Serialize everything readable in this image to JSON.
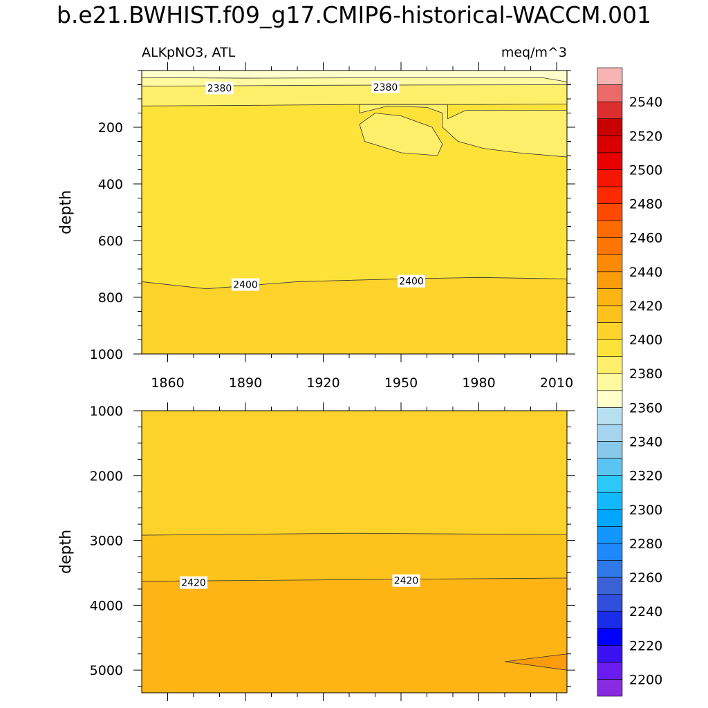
{
  "title": "b.e21.BWHIST.f09_g17.CMIP6-historical-WACCM.001",
  "chart_data": [
    {
      "type": "contour",
      "panel": "upper",
      "left_label": "ALKpNO3, ATL",
      "right_label": "meq/m^3",
      "ylabel": "depth",
      "y_reversed": true,
      "xlim": [
        1850,
        2014
      ],
      "ylim": [
        0,
        1000
      ],
      "x_ticks": [
        1860,
        1890,
        1920,
        1950,
        1980,
        2010
      ],
      "y_ticks": [
        200,
        400,
        600,
        800,
        1000
      ],
      "contour_labels": [
        {
          "text": "2380",
          "x": 1880,
          "y": 62
        },
        {
          "text": "2380",
          "x": 1944,
          "y": 58
        },
        {
          "text": "2400",
          "x": 1890,
          "y": 755
        },
        {
          "text": "2400",
          "x": 1954,
          "y": 743
        }
      ],
      "bands": [
        {
          "range": "2360-2370",
          "top": [
            [
              1850,
              0
            ],
            [
              2014,
              0
            ]
          ],
          "bottom": [
            [
              1850,
              25
            ],
            [
              1890,
              27
            ],
            [
              1930,
              26
            ],
            [
              1980,
              26
            ],
            [
              2005,
              26
            ],
            [
              2014,
              40
            ]
          ]
        },
        {
          "range": "2370-2380",
          "top": [
            [
              1850,
              25
            ],
            [
              1890,
              27
            ],
            [
              1930,
              26
            ],
            [
              1980,
              26
            ],
            [
              2005,
              26
            ],
            [
              2014,
              40
            ]
          ],
          "bottom": [
            [
              1850,
              55
            ],
            [
              1880,
              54
            ],
            [
              1920,
              52
            ],
            [
              1960,
              51
            ],
            [
              2014,
              50
            ]
          ]
        },
        {
          "range": "2380-2390",
          "top": [
            [
              1850,
              55
            ],
            [
              1880,
              54
            ],
            [
              1920,
              52
            ],
            [
              1960,
              51
            ],
            [
              2014,
              50
            ]
          ],
          "bottom": [
            [
              1850,
              125
            ],
            [
              1890,
              123
            ],
            [
              1930,
              120
            ],
            [
              1980,
              120
            ],
            [
              2014,
              118
            ]
          ]
        },
        {
          "range": "2390-2400",
          "top": [
            [
              1850,
              125
            ],
            [
              1890,
              123
            ],
            [
              1930,
              120
            ],
            [
              1980,
              120
            ],
            [
              2014,
              118
            ]
          ],
          "bottom": [
            [
              1850,
              745
            ],
            [
              1875,
              770
            ],
            [
              1910,
              745
            ],
            [
              1950,
              735
            ],
            [
              1980,
              730
            ],
            [
              2014,
              735
            ]
          ]
        },
        {
          "range": "2400-2410",
          "top": [
            [
              1850,
              745
            ],
            [
              1875,
              770
            ],
            [
              1910,
              745
            ],
            [
              1950,
              735
            ],
            [
              1980,
              730
            ],
            [
              2014,
              735
            ]
          ],
          "bottom": [
            [
              1850,
              1000
            ],
            [
              2014,
              1000
            ]
          ]
        }
      ],
      "regions": [
        {
          "range": "2380-2390",
          "points": [
            [
              1934,
              150
            ],
            [
              1945,
              125
            ],
            [
              1960,
              130
            ],
            [
              1966,
              150
            ],
            [
              1966,
              200
            ],
            [
              1972,
              250
            ],
            [
              1982,
              275
            ],
            [
              1995,
              290
            ],
            [
              2014,
              305
            ],
            [
              2014,
              140
            ],
            [
              1975,
              140
            ],
            [
              1968,
              170
            ],
            [
              1968,
              120
            ],
            [
              1934,
              120
            ]
          ]
        },
        {
          "range": "2380-2390",
          "points": [
            [
              1934,
              190
            ],
            [
              1936,
              250
            ],
            [
              1950,
              290
            ],
            [
              1964,
              300
            ],
            [
              1966,
              260
            ],
            [
              1962,
              200
            ],
            [
              1950,
              160
            ],
            [
              1940,
              150
            ]
          ]
        }
      ]
    },
    {
      "type": "contour",
      "panel": "lower",
      "ylabel": "depth",
      "y_reversed": true,
      "xlim": [
        1850,
        2014
      ],
      "ylim": [
        1000,
        5350
      ],
      "x_ticks": [
        1860,
        1890,
        1920,
        1950,
        1980,
        2010
      ],
      "y_ticks": [
        1000,
        2000,
        3000,
        4000,
        5000
      ],
      "contour_labels": [
        {
          "text": "2420",
          "x": 1870,
          "y": 3650
        },
        {
          "text": "2420",
          "x": 1952,
          "y": 3620
        }
      ],
      "bands": [
        {
          "range": "2400-2410",
          "top": [
            [
              1850,
              1000
            ],
            [
              2014,
              1000
            ]
          ],
          "bottom": [
            [
              1850,
              2920
            ],
            [
              1930,
              2890
            ],
            [
              2014,
              2910
            ]
          ]
        },
        {
          "range": "2410-2420",
          "top": [
            [
              1850,
              2920
            ],
            [
              1930,
              2890
            ],
            [
              2014,
              2910
            ]
          ],
          "bottom": [
            [
              1850,
              3630
            ],
            [
              1950,
              3600
            ],
            [
              2014,
              3580
            ]
          ]
        },
        {
          "range": "2420-2430",
          "top": [
            [
              1850,
              3630
            ],
            [
              1950,
              3600
            ],
            [
              2014,
              3580
            ]
          ],
          "bottom": [
            [
              1850,
              5350
            ],
            [
              2014,
              5350
            ]
          ]
        }
      ],
      "regions": [
        {
          "range": "2430-2440",
          "points": [
            [
              1990,
              4870
            ],
            [
              2014,
              4750
            ],
            [
              2014,
              5000
            ]
          ]
        }
      ]
    }
  ],
  "colorbar": {
    "levels": [
      2190,
      2200,
      2210,
      2220,
      2230,
      2240,
      2250,
      2260,
      2270,
      2280,
      2290,
      2300,
      2310,
      2320,
      2330,
      2340,
      2350,
      2360,
      2370,
      2380,
      2390,
      2400,
      2410,
      2420,
      2430,
      2440,
      2450,
      2460,
      2470,
      2480,
      2490,
      2500,
      2510,
      2520,
      2530,
      2540,
      2550,
      2560
    ],
    "labels": [
      "2200",
      "2220",
      "2240",
      "2260",
      "2280",
      "2300",
      "2320",
      "2340",
      "2360",
      "2380",
      "2400",
      "2420",
      "2440",
      "2460",
      "2480",
      "2500",
      "2520",
      "2540"
    ],
    "colors": [
      "#8a2be2",
      "#6a1bf0",
      "#3a12f2",
      "#0000ff",
      "#1a2de8",
      "#2f4fdc",
      "#3a62d6",
      "#2f78e8",
      "#1e88ff",
      "#1496ff",
      "#00a6ff",
      "#14b8ff",
      "#2cc8fa",
      "#5cc4f2",
      "#88c8ea",
      "#a6d4ee",
      "#b6e0f2",
      "#ffffcc",
      "#fff9a0",
      "#feef6a",
      "#fde23a",
      "#fdd22a",
      "#fdc21c",
      "#fdb414",
      "#fd9c0a",
      "#fd8a06",
      "#fd7604",
      "#fd6a02",
      "#fd4a00",
      "#fd2a00",
      "#f41600",
      "#e80000",
      "#d80000",
      "#c80000",
      "#dc2e2e",
      "#ea6a6a",
      "#f8b4b4"
    ]
  }
}
